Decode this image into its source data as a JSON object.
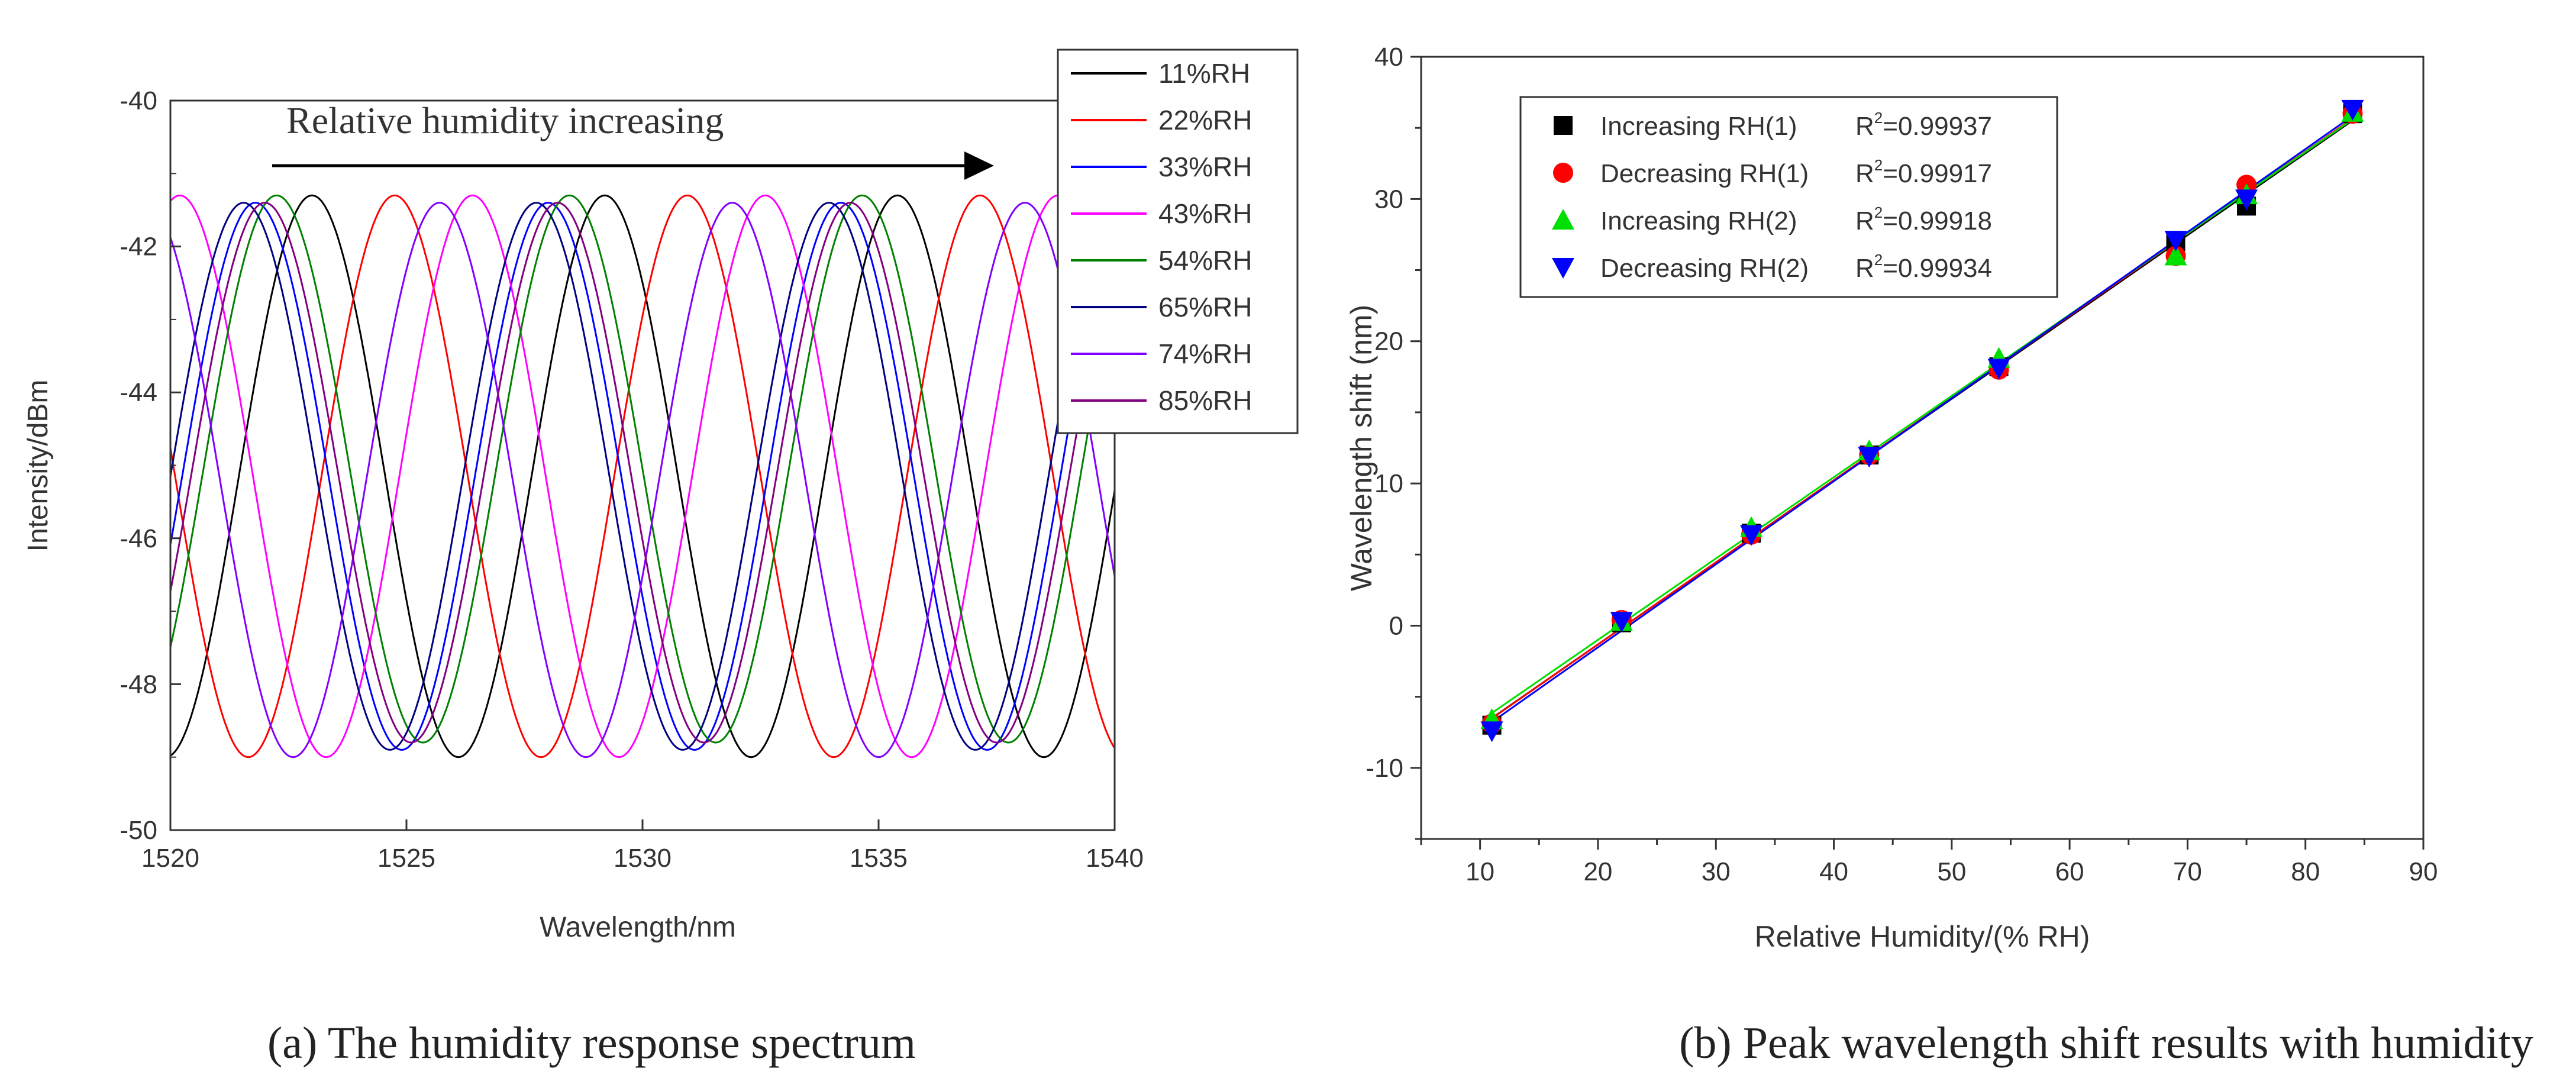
{
  "chart_data": [
    {
      "type": "line",
      "caption": "(a) The humidity response spectrum",
      "title": "",
      "annotation": "Relative humidity increasing",
      "xlabel": "Wavelength/nm",
      "ylabel": "Intensity/dBm",
      "xlim": [
        1520,
        1540
      ],
      "ylim": [
        -50,
        -40
      ],
      "xticks": [
        1520,
        1525,
        1530,
        1535,
        1540
      ],
      "yticks": [
        -50,
        -48,
        -46,
        -44,
        -42,
        -40
      ],
      "grid": false,
      "legend_position": "top-right",
      "series": [
        {
          "name": "11%RH",
          "color": "#000000",
          "peak_x": 1523.0,
          "peak_y": -41.3,
          "trough_y": -49.0,
          "period": 6.2
        },
        {
          "name": "22%RH",
          "color": "#ff0000",
          "peak_x": 1524.75,
          "peak_y": -41.3,
          "trough_y": -49.0,
          "period": 6.2
        },
        {
          "name": "33%RH",
          "color": "#0000ff",
          "peak_x": 1521.8,
          "peak_y": -41.4,
          "trough_y": -48.9,
          "period": 6.2
        },
        {
          "name": "43%RH",
          "color": "#ff00ff",
          "peak_x": 1526.4,
          "peak_y": -41.3,
          "trough_y": -49.0,
          "period": 6.2
        },
        {
          "name": "54%RH",
          "color": "#008000",
          "peak_x": 1522.25,
          "peak_y": -41.3,
          "trough_y": -48.8,
          "period": 6.2
        },
        {
          "name": "65%RH",
          "color": "#000080",
          "peak_x": 1521.55,
          "peak_y": -41.4,
          "trough_y": -48.9,
          "period": 6.2
        },
        {
          "name": "74%RH",
          "color": "#8000ff",
          "peak_x": 1525.7,
          "peak_y": -41.4,
          "trough_y": -49.0,
          "period": 6.2
        },
        {
          "name": "85%RH",
          "color": "#800080",
          "peak_x": 1522.0,
          "peak_y": -41.4,
          "trough_y": -48.8,
          "period": 6.2
        }
      ]
    },
    {
      "type": "scatter",
      "caption": "(b) Peak wavelength shift results with humidity",
      "title": "",
      "xlabel": "Relative Humidity/(% RH)",
      "ylabel": "Wavelength shift (nm)",
      "xlim": [
        5,
        90
      ],
      "ylim": [
        -15,
        40
      ],
      "xticks": [
        10,
        20,
        30,
        40,
        50,
        60,
        70,
        80,
        90
      ],
      "yticks": [
        -10,
        0,
        10,
        20,
        30,
        40
      ],
      "grid": false,
      "legend_position": "top-left",
      "x": [
        11,
        22,
        33,
        43,
        54,
        69,
        75,
        84
      ],
      "series": [
        {
          "name": "Increasing RH(1)",
          "r2_label": "R",
          "r2_sup": "2",
          "r2_value": "=0.99937",
          "color": "#000000",
          "marker": "square",
          "values": [
            -7.0,
            0.2,
            6.5,
            12.0,
            18.2,
            27.0,
            29.5,
            36.0
          ]
        },
        {
          "name": "Decreasing RH(1)",
          "r2_label": "R",
          "r2_sup": "2",
          "r2_value": "=0.99917",
          "color": "#ff0000",
          "marker": "circle",
          "values": [
            -6.9,
            0.4,
            6.4,
            12.0,
            18.0,
            26.0,
            31.0,
            36.0
          ]
        },
        {
          "name": "Increasing RH(2)",
          "r2_label": "R",
          "r2_sup": "2",
          "r2_value": "=0.99918",
          "color": "#00e000",
          "marker": "triangle-up",
          "values": [
            -6.6,
            0.3,
            6.9,
            12.3,
            18.8,
            26.0,
            30.3,
            36.1
          ]
        },
        {
          "name": "Decreasing RH(2)",
          "r2_label": "R",
          "r2_sup": "2",
          "r2_value": "=0.99934",
          "color": "#0000ff",
          "marker": "triangle-down",
          "values": [
            -7.4,
            0.3,
            6.4,
            11.9,
            18.1,
            27.1,
            30.0,
            36.3
          ]
        }
      ]
    }
  ]
}
